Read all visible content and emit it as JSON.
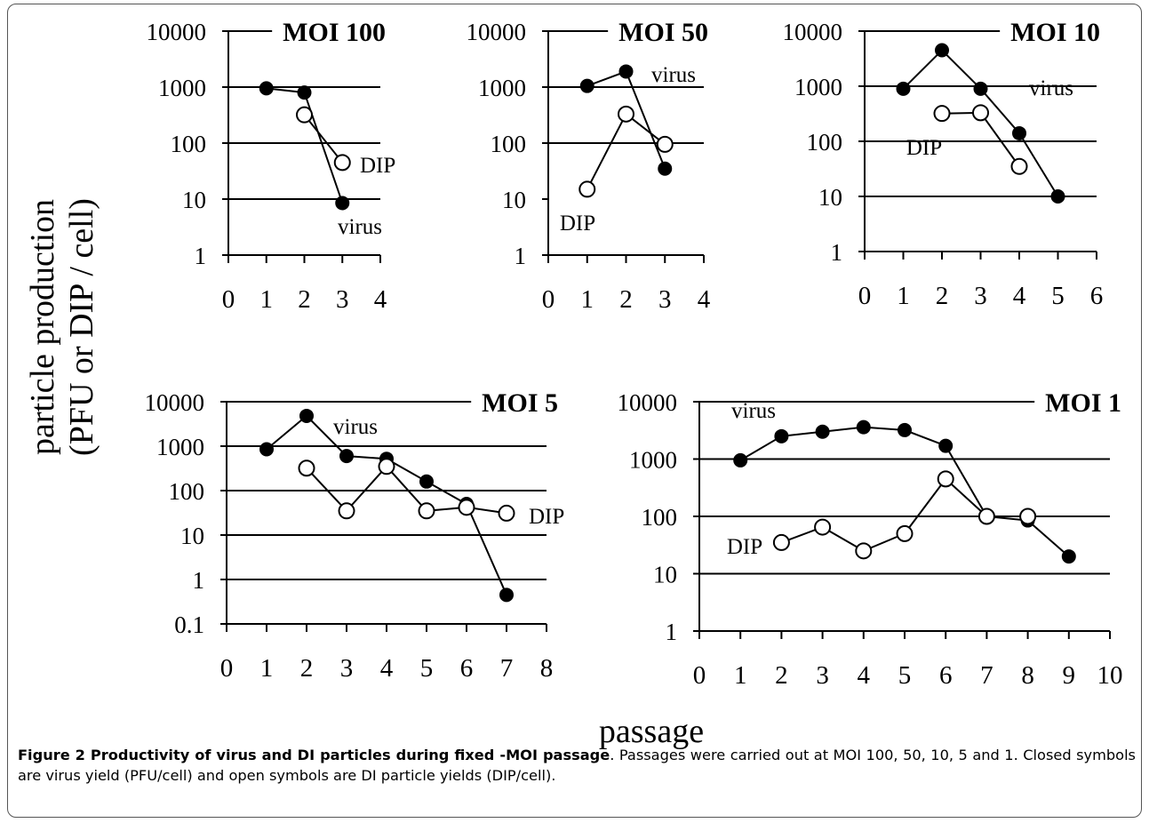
{
  "axis_labels": {
    "ylabel_line1": "particle production",
    "ylabel_line2": "(PFU or DIP / cell)",
    "xlabel": "passage"
  },
  "caption": {
    "title": "Figure 2 Productivity of virus and DI particles during fixed -MOI passage",
    "text": ". Passages were carried out at MOI 100, 50, 10, 5 and 1. Closed symbols are virus yield (PFU/cell) and open symbols are DI particle yields (DIP/cell)."
  },
  "colors": {
    "ink": "#000000",
    "open_fill": "#ffffff"
  },
  "chart_data": [
    {
      "type": "line",
      "title": "MOI 100",
      "yscale": "log",
      "ylim": [
        1,
        10000
      ],
      "yticks": [
        "1",
        "10",
        "100",
        "1000",
        "10000"
      ],
      "xlim": [
        0,
        4
      ],
      "xticks": [
        "0",
        "1",
        "2",
        "3",
        "4"
      ],
      "gridlines": [
        10,
        100,
        1000
      ],
      "series": [
        {
          "name": "virus",
          "marker": "closed",
          "x": [
            1,
            2,
            3
          ],
          "y": [
            950,
            800,
            8.5
          ]
        },
        {
          "name": "DIP",
          "marker": "open",
          "x": [
            2,
            3
          ],
          "y": [
            320,
            45
          ]
        }
      ]
    },
    {
      "type": "line",
      "title": "MOI 50",
      "yscale": "log",
      "ylim": [
        1,
        10000
      ],
      "yticks": [
        "1",
        "10",
        "100",
        "1000",
        "10000"
      ],
      "xlim": [
        0,
        4
      ],
      "xticks": [
        "0",
        "1",
        "2",
        "3",
        "4"
      ],
      "gridlines": [
        100,
        1000
      ],
      "series": [
        {
          "name": "virus",
          "marker": "closed",
          "x": [
            1,
            2,
            3
          ],
          "y": [
            1050,
            1900,
            35
          ]
        },
        {
          "name": "DIP",
          "marker": "open",
          "x": [
            1,
            2,
            3
          ],
          "y": [
            15,
            330,
            95
          ]
        }
      ]
    },
    {
      "type": "line",
      "title": "MOI 10",
      "yscale": "log",
      "ylim": [
        1,
        10000
      ],
      "yticks": [
        "1",
        "10",
        "100",
        "1000",
        "10000"
      ],
      "xlim": [
        0,
        6
      ],
      "xticks": [
        "0",
        "1",
        "2",
        "3",
        "4",
        "5",
        "6"
      ],
      "gridlines": [
        10,
        100,
        1000
      ],
      "series": [
        {
          "name": "virus",
          "marker": "closed",
          "x": [
            1,
            2,
            3,
            4,
            5
          ],
          "y": [
            900,
            4500,
            900,
            140,
            10
          ]
        },
        {
          "name": "DIP",
          "marker": "open",
          "x": [
            2,
            3,
            4
          ],
          "y": [
            320,
            330,
            35
          ]
        }
      ]
    },
    {
      "type": "line",
      "title": "MOI 5",
      "yscale": "log",
      "ylim": [
        0.1,
        10000
      ],
      "yticks": [
        "0.1",
        "1",
        "10",
        "100",
        "1000",
        "10000"
      ],
      "xlim": [
        0,
        8
      ],
      "xticks": [
        "0",
        "1",
        "2",
        "3",
        "4",
        "5",
        "6",
        "7",
        "8"
      ],
      "gridlines": [
        1,
        10,
        100,
        1000
      ],
      "series": [
        {
          "name": "virus",
          "marker": "closed",
          "x": [
            1,
            2,
            3,
            4,
            5,
            6,
            7
          ],
          "y": [
            850,
            4800,
            600,
            520,
            160,
            50,
            0.45
          ]
        },
        {
          "name": "DIP",
          "marker": "open",
          "x": [
            2,
            3,
            4,
            5,
            6,
            7
          ],
          "y": [
            320,
            35,
            350,
            35,
            42,
            31
          ]
        }
      ]
    },
    {
      "type": "line",
      "title": "MOI 1",
      "yscale": "log",
      "ylim": [
        1,
        10000
      ],
      "yticks": [
        "1",
        "10",
        "100",
        "1000",
        "10000"
      ],
      "xlim": [
        0,
        10
      ],
      "xticks": [
        "0",
        "1",
        "2",
        "3",
        "4",
        "5",
        "6",
        "7",
        "8",
        "9",
        "10"
      ],
      "gridlines": [
        10,
        100,
        1000
      ],
      "series": [
        {
          "name": "virus",
          "marker": "closed",
          "x": [
            1,
            2,
            3,
            4,
            5,
            6,
            7,
            8,
            9
          ],
          "y": [
            950,
            2500,
            3000,
            3600,
            3200,
            1700,
            100,
            85,
            20
          ]
        },
        {
          "name": "DIP",
          "marker": "open",
          "x": [
            2,
            3,
            4,
            5,
            6,
            7,
            8
          ],
          "y": [
            35,
            65,
            25,
            50,
            450,
            100,
            100
          ]
        }
      ]
    }
  ]
}
